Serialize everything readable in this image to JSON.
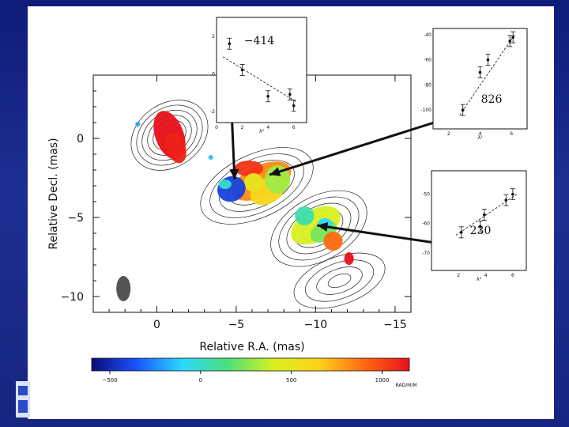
{
  "chart_data": [
    {
      "type": "heatmap",
      "xlabel": "Relative R.A. (mas)",
      "ylabel": "Relative Decl. (mas)",
      "xticks": [
        "0",
        "−5",
        "−10",
        "−15"
      ],
      "xtick_values": [
        0,
        -5,
        -10,
        -15
      ],
      "yticks": [
        "0",
        "−5",
        "−10"
      ],
      "ytick_values": [
        0,
        -5,
        -10
      ],
      "xlim": [
        4,
        -16
      ],
      "ylim": [
        -11,
        4
      ],
      "colorbar": {
        "ticks": [
          "−500",
          "0",
          "500",
          "1000"
        ],
        "tick_values": [
          -500,
          0,
          500,
          1000
        ],
        "range": [
          -600,
          1150
        ],
        "unit": "RAD/M/M",
        "colors": [
          "#0a0a7a",
          "#1b55ff",
          "#2ad8ff",
          "#4be07a",
          "#d8f020",
          "#ffd21a",
          "#ff6a10",
          "#e8101a"
        ]
      },
      "regions": [
        {
          "name": "core",
          "x": -0.8,
          "y": 0.2,
          "rm": 1150
        },
        {
          "name": "blue-component",
          "x": -4.8,
          "y": -3.2,
          "rm": -414
        },
        {
          "name": "central-component",
          "x": -6.8,
          "y": -2.9,
          "rm": 826
        },
        {
          "name": "outer-component",
          "x": -10.2,
          "y": -5.6,
          "rm": 230
        }
      ]
    },
    {
      "type": "scatter",
      "annotation": "−414",
      "xlabel": "λ²",
      "x": [
        1.0,
        2.0,
        4.0,
        5.7,
        6.0
      ],
      "y": [
        1.6,
        0.2,
        -1.2,
        -1.1,
        -1.7
      ],
      "fit": [
        [
          0.5,
          0.9
        ],
        [
          6.2,
          -1.5
        ]
      ],
      "xlim": [
        0,
        7
      ],
      "ylim": [
        -2.6,
        3.0
      ],
      "xticks": [
        "0",
        "2",
        "4",
        "6"
      ],
      "yticks": [
        "2",
        "0",
        "-2"
      ]
    },
    {
      "type": "scatter",
      "annotation": "826",
      "xlabel": "λ²",
      "x": [
        2.9,
        4.0,
        4.5,
        5.9,
        6.1
      ],
      "y": [
        -100,
        -70,
        -60,
        -45,
        -42
      ],
      "fit": [
        [
          2.7,
          -104
        ],
        [
          6.2,
          -40
        ]
      ],
      "xlim": [
        1,
        7
      ],
      "ylim": [
        -115,
        -35
      ],
      "xticks": [
        "2",
        "4",
        "6"
      ],
      "yticks": [
        "-40",
        "-60",
        "-80",
        "-100"
      ]
    },
    {
      "type": "scatter",
      "annotation": "230",
      "xlabel": "λ²",
      "x": [
        2.2,
        3.6,
        3.9,
        5.5,
        6.0
      ],
      "y": [
        -63,
        -61,
        -57,
        -52,
        -50
      ],
      "fit": [
        [
          1.8,
          -64
        ],
        [
          6.3,
          -50
        ]
      ],
      "xlim": [
        0,
        7
      ],
      "ylim": [
        -76,
        -42
      ],
      "xticks": [
        "2",
        "4",
        "6"
      ],
      "yticks": [
        "-50",
        "-60",
        "-70"
      ]
    }
  ]
}
